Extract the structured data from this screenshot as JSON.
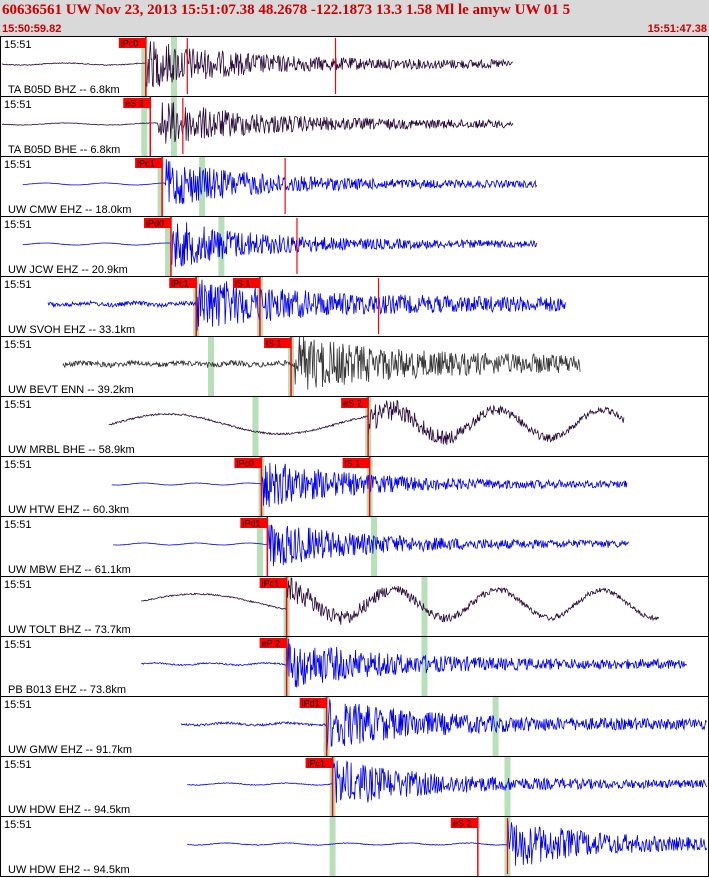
{
  "header": {
    "title": "60636561 UW Nov 23, 2013 15:51:07.38    48.2678 -122.1873 13.3 1.58 Ml le amyw UW 01    5",
    "start_time": "15:50:59.82",
    "end_time": "15:51:47.38"
  },
  "chart_data": {
    "type": "line",
    "title": "",
    "xlabel": "",
    "ylabel": "",
    "time_range_s": [
      0,
      47.56
    ],
    "origin_time_s": 7.56,
    "colors": {
      "header_text": "#cc0000",
      "trace_dark": "#2a0a3a",
      "trace_blue": "#0000ee",
      "trace_gray": "#333333",
      "pick": "#ff0000",
      "pick_window": "#b8e0b8"
    },
    "traces": [
      {
        "label": "TA B05D BHZ -- 6.8km",
        "time_tag": "15:51",
        "color": "#2a0a3a",
        "signal_start_s": 0,
        "signal_end_s": 34.5,
        "onset_s": 9.7,
        "amp": 1.0,
        "freq": 0.9,
        "noise": 0.08,
        "picks": [
          {
            "label": "iPc0",
            "t": 9.7,
            "color": "red"
          }
        ],
        "windows": [
          9.6,
          11.6
        ],
        "markers": [
          12.5,
          22.5
        ]
      },
      {
        "label": "TA B05D BHE -- 6.8km",
        "time_tag": "15:51",
        "color": "#2a0a3a",
        "signal_start_s": 0,
        "signal_end_s": 34.5,
        "onset_s": 10.5,
        "amp": 1.0,
        "freq": 0.9,
        "noise": 0.05,
        "picks": [
          {
            "label": "eS 2",
            "t": 10.0,
            "color": "red"
          }
        ],
        "windows": [
          9.6,
          11.6
        ],
        "markers": [
          12.2
        ]
      },
      {
        "label": "UW CMW EHZ -- 18.0km",
        "time_tag": "15:51",
        "color": "#0000ee",
        "signal_start_s": 1.4,
        "signal_end_s": 36.1,
        "onset_s": 11.0,
        "amp": 1.0,
        "freq": 1.3,
        "noise": 0.02,
        "picks": [
          {
            "label": "iPc1",
            "t": 10.8,
            "color": "red"
          }
        ],
        "windows": [
          10.7,
          13.5
        ],
        "markers": [
          19.1
        ]
      },
      {
        "label": "UW JCW EHZ -- 20.9km",
        "time_tag": "15:51",
        "color": "#0000ee",
        "signal_start_s": 1.4,
        "signal_end_s": 36.1,
        "onset_s": 11.4,
        "amp": 1.0,
        "freq": 1.3,
        "noise": 0.02,
        "picks": [
          {
            "label": "iPd0",
            "t": 11.4,
            "color": "red"
          }
        ],
        "windows": [
          11.2,
          14.8
        ],
        "markers": [
          19.9
        ]
      },
      {
        "label": "UW SVOH EHZ -- 33.1km",
        "time_tag": "15:51",
        "color": "#0000ee",
        "signal_start_s": 3.1,
        "signal_end_s": 38.0,
        "onset_s": 13.1,
        "amp": 1.0,
        "freq": 1.6,
        "noise": 0.35,
        "picks": [
          {
            "label": "iPc1",
            "t": 13.1,
            "color": "red"
          },
          {
            "label": "iS 1",
            "t": 17.4,
            "color": "red"
          }
        ],
        "windows": [
          13.1,
          17.4
        ],
        "markers": [
          25.4
        ]
      },
      {
        "label": "UW BEVT ENN -- 39.2km",
        "time_tag": "15:51",
        "color": "#333333",
        "signal_start_s": 4.1,
        "signal_end_s": 39.0,
        "onset_s": 19.7,
        "amp": 1.0,
        "freq": 1.6,
        "noise": 0.45,
        "picks": [
          {
            "label": "iS 1",
            "t": 19.5,
            "color": "red"
          }
        ],
        "windows": [
          14.1,
          19.5
        ],
        "markers": []
      },
      {
        "label": "UW MRBL BHE -- 58.9km",
        "time_tag": "15:51",
        "color": "#2a0a3a",
        "signal_start_s": 7.2,
        "signal_end_s": 42.0,
        "onset_s": 24.7,
        "amp": 1.0,
        "freq": 0.35,
        "noise": 0.15,
        "picks": [
          {
            "label": "eS 2",
            "t": 24.7,
            "color": "red"
          }
        ],
        "windows": [
          17.1,
          24.7
        ],
        "markers": []
      },
      {
        "label": "UW HTW EHZ -- 60.3km",
        "time_tag": "15:51",
        "color": "#0000ee",
        "signal_start_s": 7.4,
        "signal_end_s": 42.2,
        "onset_s": 17.5,
        "amp": 1.0,
        "freq": 1.5,
        "noise": 0.02,
        "picks": [
          {
            "label": "iPc0",
            "t": 17.5,
            "color": "red"
          },
          {
            "label": "iS 1",
            "t": 24.8,
            "color": "red"
          }
        ],
        "windows": [
          17.5,
          24.8
        ],
        "markers": []
      },
      {
        "label": "UW MBW EHZ -- 61.1km",
        "time_tag": "15:51",
        "color": "#0000ee",
        "signal_start_s": 7.5,
        "signal_end_s": 42.3,
        "onset_s": 17.9,
        "amp": 1.0,
        "freq": 1.5,
        "noise": 0.02,
        "picks": [
          {
            "label": "iPd1",
            "t": 17.9,
            "color": "red"
          }
        ],
        "windows": [
          17.4,
          25.1
        ],
        "markers": []
      },
      {
        "label": "UW TOLT BHZ -- 73.7km",
        "time_tag": "15:51",
        "color": "#2a0a3a",
        "signal_start_s": 9.4,
        "signal_end_s": 44.3,
        "onset_s": 19.2,
        "amp": 1.0,
        "freq": 0.3,
        "noise": 0.12,
        "picks": [
          {
            "label": "iPc1",
            "t": 19.2,
            "color": "red"
          }
        ],
        "windows": [
          19.2,
          28.5
        ],
        "markers": []
      },
      {
        "label": "PB B013 EHZ -- 73.8km",
        "time_tag": "15:51",
        "color": "#0000ee",
        "signal_start_s": 9.4,
        "signal_end_s": 46.2,
        "onset_s": 19.2,
        "amp": 1.0,
        "freq": 1.4,
        "noise": 0.12,
        "picks": [
          {
            "label": "eP 2",
            "t": 19.2,
            "color": "red"
          }
        ],
        "windows": [
          19.2,
          28.5
        ],
        "markers": []
      },
      {
        "label": "UW GMW EHZ -- 91.7km",
        "time_tag": "15:51",
        "color": "#0000ee",
        "signal_start_s": 12.1,
        "signal_end_s": 47.56,
        "onset_s": 21.9,
        "amp": 1.0,
        "freq": 1.3,
        "noise": 0.18,
        "picks": [
          {
            "label": "iPd1",
            "t": 21.9,
            "color": "red"
          }
        ],
        "windows": [
          21.9,
          33.3
        ],
        "markers": []
      },
      {
        "label": "UW HDW EHZ -- 94.5km",
        "time_tag": "15:51",
        "color": "#0000ee",
        "signal_start_s": 12.5,
        "signal_end_s": 47.56,
        "onset_s": 22.3,
        "amp": 1.0,
        "freq": 1.3,
        "noise": 0.06,
        "picks": [
          {
            "label": "iPc1",
            "t": 22.3,
            "color": "red"
          }
        ],
        "windows": [
          22.3,
          34.1
        ],
        "markers": []
      },
      {
        "label": "UW HDW EH2 -- 94.5km",
        "time_tag": "15:51",
        "color": "#0000ee",
        "signal_start_s": 12.5,
        "signal_end_s": 47.56,
        "onset_s": 34.1,
        "amp": 1.0,
        "freq": 1.3,
        "noise": 0.06,
        "picks": [
          {
            "label": "eS 2",
            "t": 32.1,
            "color": "red"
          }
        ],
        "windows": [
          22.3,
          34.1
        ],
        "markers": [
          34.1
        ]
      }
    ]
  }
}
